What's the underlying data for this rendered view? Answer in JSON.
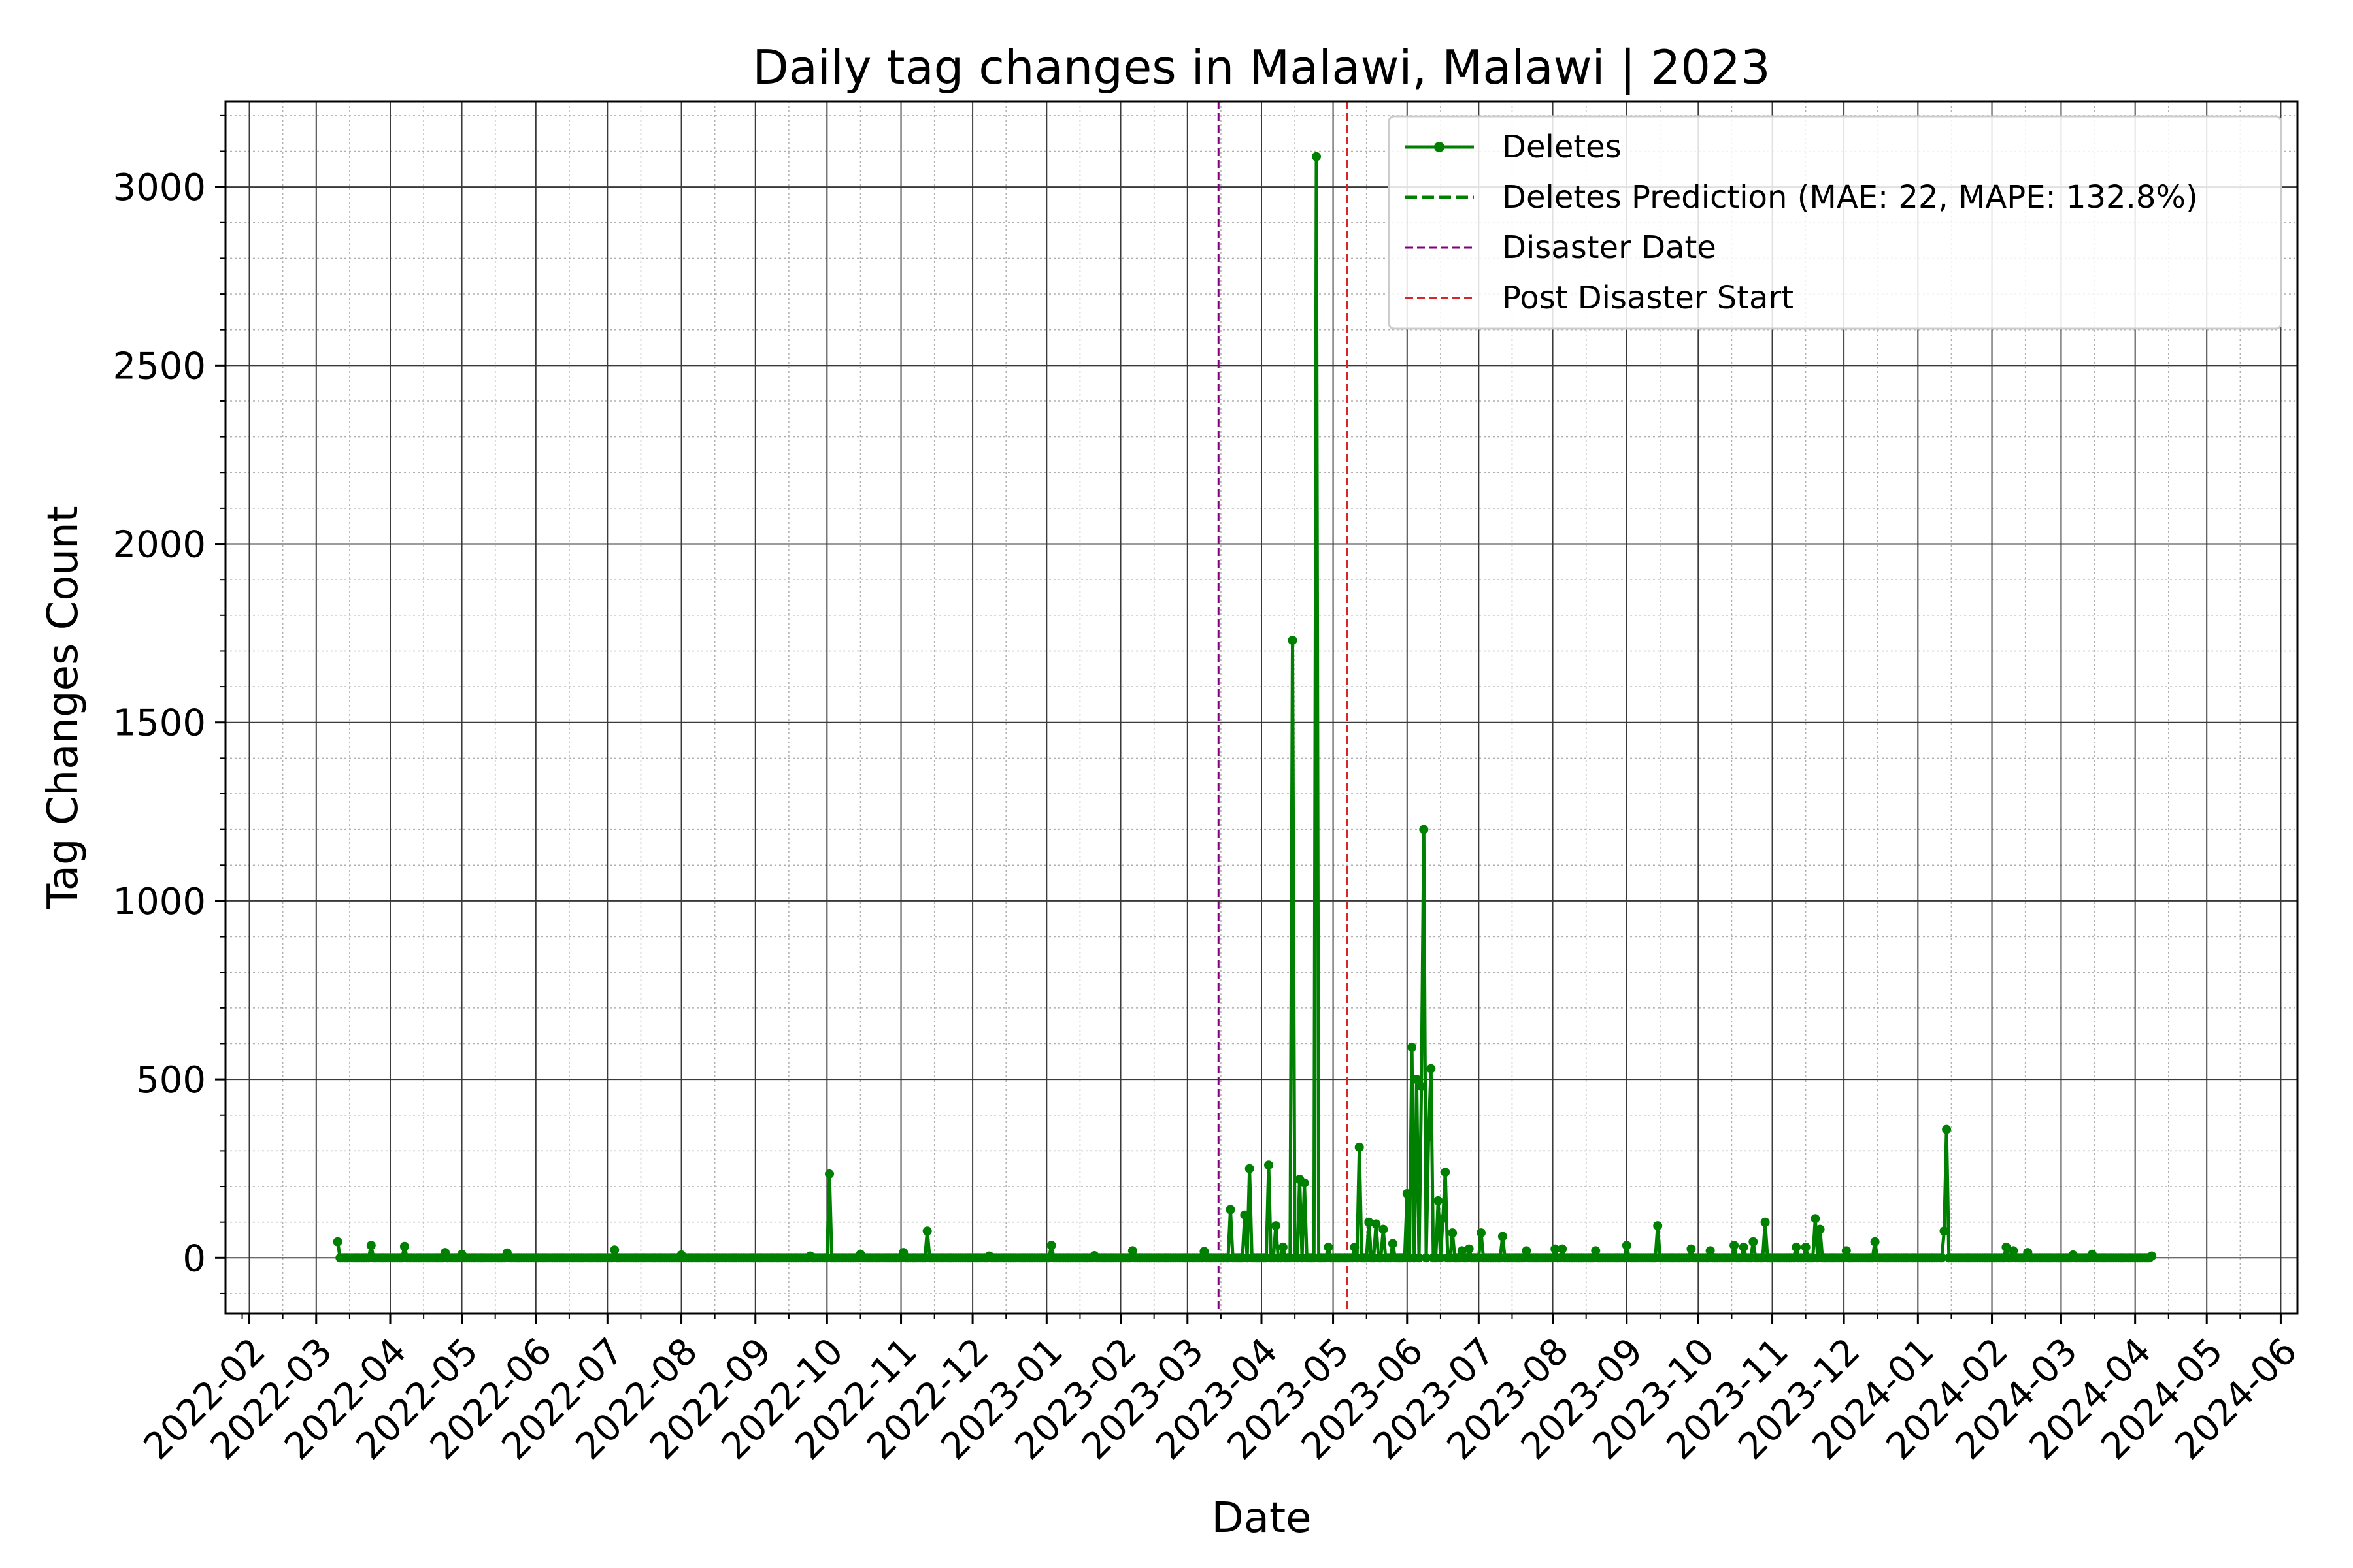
{
  "chart_data": {
    "type": "line",
    "title": "Daily tag changes in Malawi, Malawi | 2023",
    "xlabel": "Date",
    "ylabel": "Tag Changes Count",
    "xlim": [
      "2022-01-22",
      "2024-06-08"
    ],
    "ylim": [
      -155,
      3240
    ],
    "grid": "major and minor",
    "legend_position": "upper right",
    "x_ticks": [
      "2022-02",
      "2022-03",
      "2022-04",
      "2022-05",
      "2022-06",
      "2022-07",
      "2022-08",
      "2022-09",
      "2022-10",
      "2022-11",
      "2022-12",
      "2023-01",
      "2023-02",
      "2023-03",
      "2023-04",
      "2023-05",
      "2023-06",
      "2023-07",
      "2023-08",
      "2023-09",
      "2023-10",
      "2023-11",
      "2023-12",
      "2024-01",
      "2024-02",
      "2024-03",
      "2024-04",
      "2024-05",
      "2024-06"
    ],
    "y_ticks": [
      0,
      500,
      1000,
      1500,
      2000,
      2500,
      3000
    ],
    "x_range": [
      "2022-03-10",
      "2024-04-08"
    ],
    "series": [
      {
        "name": "Deletes",
        "color": "#008000",
        "baseline": 0,
        "spikes": [
          [
            "2022-03-10",
            45
          ],
          [
            "2022-03-24",
            35
          ],
          [
            "2022-04-07",
            32
          ],
          [
            "2022-04-24",
            15
          ],
          [
            "2022-05-01",
            10
          ],
          [
            "2022-05-20",
            14
          ],
          [
            "2022-07-04",
            22
          ],
          [
            "2022-08-01",
            8
          ],
          [
            "2022-09-24",
            5
          ],
          [
            "2022-10-02",
            235
          ],
          [
            "2022-10-15",
            10
          ],
          [
            "2022-11-02",
            15
          ],
          [
            "2022-11-12",
            75
          ],
          [
            "2022-12-08",
            5
          ],
          [
            "2023-01-03",
            35
          ],
          [
            "2023-01-21",
            6
          ],
          [
            "2023-02-06",
            20
          ],
          [
            "2023-03-08",
            18
          ],
          [
            "2023-03-19",
            135
          ],
          [
            "2023-03-27",
            250
          ],
          [
            "2023-03-25",
            120
          ],
          [
            "2023-04-04",
            260
          ],
          [
            "2023-04-07",
            90
          ],
          [
            "2023-04-10",
            30
          ],
          [
            "2023-04-14",
            1730
          ],
          [
            "2023-04-17",
            220
          ],
          [
            "2023-04-19",
            210
          ],
          [
            "2023-04-24",
            3085
          ],
          [
            "2023-04-29",
            30
          ],
          [
            "2023-05-10",
            30
          ],
          [
            "2023-05-12",
            310
          ],
          [
            "2023-05-16",
            100
          ],
          [
            "2023-05-19",
            95
          ],
          [
            "2023-05-22",
            80
          ],
          [
            "2023-05-26",
            40
          ],
          [
            "2023-06-01",
            180
          ],
          [
            "2023-06-03",
            590
          ],
          [
            "2023-06-05",
            500
          ],
          [
            "2023-06-07",
            480
          ],
          [
            "2023-06-08",
            1200
          ],
          [
            "2023-06-10",
            340
          ],
          [
            "2023-06-11",
            530
          ],
          [
            "2023-06-14",
            160
          ],
          [
            "2023-06-16",
            110
          ],
          [
            "2023-06-17",
            240
          ],
          [
            "2023-06-20",
            70
          ],
          [
            "2023-06-24",
            20
          ],
          [
            "2023-06-27",
            25
          ],
          [
            "2023-07-02",
            70
          ],
          [
            "2023-07-11",
            60
          ],
          [
            "2023-07-21",
            20
          ],
          [
            "2023-08-02",
            25
          ],
          [
            "2023-08-05",
            25
          ],
          [
            "2023-08-19",
            20
          ],
          [
            "2023-09-01",
            35
          ],
          [
            "2023-09-14",
            90
          ],
          [
            "2023-09-28",
            25
          ],
          [
            "2023-10-06",
            20
          ],
          [
            "2023-10-16",
            35
          ],
          [
            "2023-10-20",
            30
          ],
          [
            "2023-10-24",
            45
          ],
          [
            "2023-10-29",
            100
          ],
          [
            "2023-11-11",
            30
          ],
          [
            "2023-11-15",
            30
          ],
          [
            "2023-11-19",
            110
          ],
          [
            "2023-11-21",
            80
          ],
          [
            "2023-12-02",
            20
          ],
          [
            "2023-12-14",
            45
          ],
          [
            "2024-01-12",
            75
          ],
          [
            "2024-01-13",
            360
          ],
          [
            "2024-02-07",
            30
          ],
          [
            "2024-02-10",
            20
          ],
          [
            "2024-02-16",
            15
          ],
          [
            "2024-03-06",
            8
          ],
          [
            "2024-03-14",
            10
          ],
          [
            "2024-04-08",
            5
          ]
        ]
      },
      {
        "name": "Deletes Prediction (MAE: 22, MAPE: 132.8%)",
        "color": "#008000",
        "style": "dashed",
        "values": []
      }
    ],
    "reference_lines": [
      {
        "name": "Disaster Date",
        "x": "2023-03-14",
        "color": "#800080",
        "style": "dashed"
      },
      {
        "name": "Post Disaster Start",
        "x": "2023-05-07",
        "color": "#d62728",
        "style": "dashed"
      }
    ]
  }
}
